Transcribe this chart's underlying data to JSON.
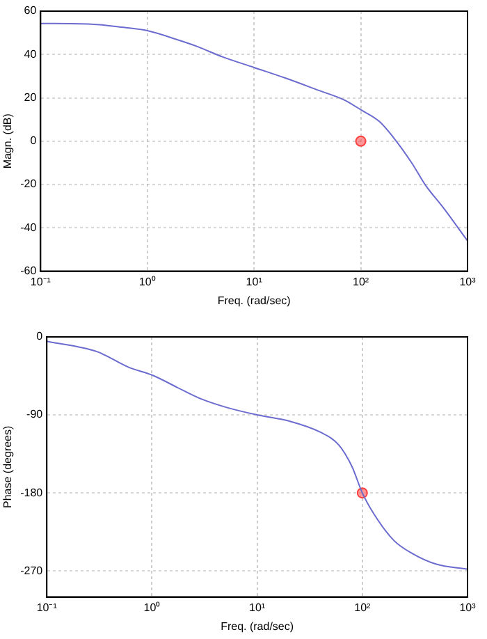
{
  "chart_data": [
    {
      "type": "line",
      "xlabel": "Freq. (rad/sec)",
      "ylabel": "Magn. (dB)",
      "log": "x",
      "grid": true,
      "xlim": [
        0.1,
        1000
      ],
      "ylim": [
        -60,
        60
      ],
      "xticks": [
        {
          "value": 0.1,
          "label": "10⁻¹"
        },
        {
          "value": 1,
          "label": "10⁰"
        },
        {
          "value": 10,
          "label": "10¹"
        },
        {
          "value": 100,
          "label": "10²"
        },
        {
          "value": 1000,
          "label": "10³"
        }
      ],
      "yticks": [
        -60,
        -40,
        -20,
        0,
        20,
        40,
        60
      ],
      "series": [
        {
          "color": "#6b6bd0",
          "marker": "none",
          "x": [
            0.1,
            0.3,
            0.6,
            1,
            2,
            3,
            5,
            10,
            20,
            40,
            70,
            100,
            150,
            200,
            300,
            400,
            600,
            1000
          ],
          "values": [
            54.3,
            54,
            52.5,
            51,
            46.5,
            43.5,
            39,
            34,
            29,
            23.5,
            19,
            14.5,
            9,
            2,
            -10,
            -20,
            -31,
            -46
          ]
        },
        {
          "type": "scatter",
          "color": "#ff4040",
          "marker": "circle",
          "x": [
            100
          ],
          "values": [
            0
          ]
        }
      ]
    },
    {
      "type": "line",
      "xlabel": "Freq. (rad/sec)",
      "ylabel": "Phase (degrees)",
      "log": "x",
      "grid": true,
      "xlim": [
        0.1,
        1000
      ],
      "ylim": [
        -300,
        0
      ],
      "xticks": [
        {
          "value": 0.1,
          "label": "10⁻¹"
        },
        {
          "value": 1,
          "label": "10⁰"
        },
        {
          "value": 10,
          "label": "10¹"
        },
        {
          "value": 100,
          "label": "10²"
        },
        {
          "value": 1000,
          "label": "10³"
        }
      ],
      "yticks": [
        -270,
        -180,
        -90,
        0
      ],
      "series": [
        {
          "color": "#6b6bd0",
          "marker": "none",
          "x": [
            0.1,
            0.3,
            0.6,
            1,
            2,
            3,
            5,
            10,
            20,
            40,
            60,
            80,
            100,
            130,
            200,
            300,
            500,
            1000
          ],
          "values": [
            -5,
            -17,
            -35,
            -44,
            -62,
            -72,
            -81,
            -90,
            -97,
            -110,
            -125,
            -150,
            -180,
            -205,
            -235,
            -250,
            -262,
            -268
          ]
        },
        {
          "type": "scatter",
          "color": "#ff4040",
          "marker": "circle",
          "x": [
            100
          ],
          "values": [
            -180
          ]
        }
      ]
    }
  ]
}
